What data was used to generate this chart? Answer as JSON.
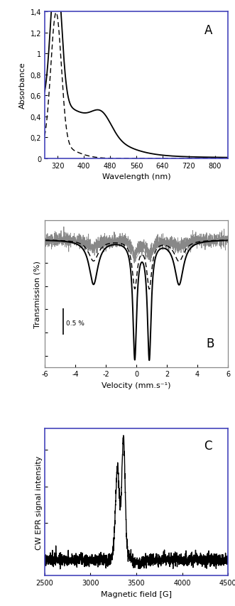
{
  "panel_A": {
    "label": "A",
    "xlabel": "Wavelength (nm)",
    "ylabel": "Absorbance",
    "xlim": [
      280,
      840
    ],
    "ylim": [
      0,
      1.4
    ],
    "yticks": [
      0,
      0.2,
      0.4,
      0.6,
      0.8,
      1.0,
      1.2,
      1.4
    ],
    "ytick_labels": [
      "0",
      "0,2",
      "0,4",
      "0,6",
      "0,8",
      "1",
      "1,2",
      "1,4"
    ],
    "xticks": [
      320,
      400,
      480,
      560,
      640,
      720,
      800
    ],
    "spine_color": "#4444bb"
  },
  "panel_B": {
    "label": "B",
    "xlabel": "Velocity (mm.s⁻¹)",
    "ylabel": "Transmission (%)",
    "xlim": [
      -6,
      6
    ],
    "xticks": [
      -6,
      -4,
      -2,
      0,
      2,
      4,
      6
    ],
    "scale_bar_text": "0.5 %",
    "spine_color": "#888888"
  },
  "panel_C": {
    "label": "C",
    "xlabel": "Magnetic field [G]",
    "ylabel": "CW EPR signal intensity",
    "xlim": [
      2500,
      4500
    ],
    "xticks": [
      2500,
      3000,
      3500,
      4000,
      4500
    ],
    "spine_color": "#4444bb"
  },
  "background_color": "#ffffff"
}
